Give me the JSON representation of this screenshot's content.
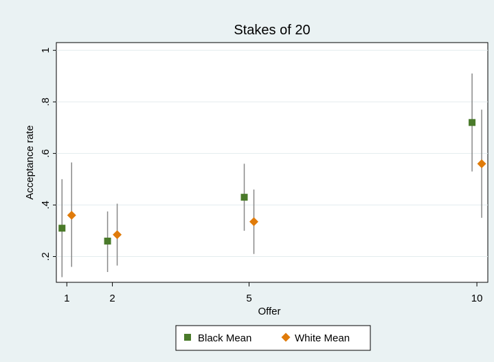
{
  "chart_data": {
    "type": "scatter",
    "title": "Stakes of 20",
    "xlabel": "Offer",
    "ylabel": "Acceptance rate",
    "x_ticks": [
      1,
      2,
      5,
      10
    ],
    "x_tick_labels": [
      "1",
      "2",
      "5",
      "10"
    ],
    "y_ticks": [
      0.2,
      0.4,
      0.6,
      0.8,
      1.0
    ],
    "y_tick_labels": [
      ".2",
      ".4",
      ".6",
      ".8",
      "1"
    ],
    "xlim": [
      0.77,
      10.24
    ],
    "ylim": [
      0.1,
      1.03
    ],
    "grid": true,
    "legend_position": "bottom",
    "series": [
      {
        "name": "Black Mean",
        "marker": "square",
        "color": "#4a7a2a",
        "points": [
          {
            "x": 1,
            "y": 0.31,
            "lo": 0.12,
            "hi": 0.5
          },
          {
            "x": 2,
            "y": 0.26,
            "lo": 0.14,
            "hi": 0.375
          },
          {
            "x": 5,
            "y": 0.43,
            "lo": 0.3,
            "hi": 0.56
          },
          {
            "x": 10,
            "y": 0.72,
            "lo": 0.53,
            "hi": 0.91
          }
        ]
      },
      {
        "name": "White Mean",
        "marker": "diamond",
        "color": "#e07b0a",
        "points": [
          {
            "x": 1,
            "y": 0.36,
            "lo": 0.16,
            "hi": 0.565
          },
          {
            "x": 2,
            "y": 0.285,
            "lo": 0.165,
            "hi": 0.405
          },
          {
            "x": 5,
            "y": 0.335,
            "lo": 0.21,
            "hi": 0.46
          },
          {
            "x": 10,
            "y": 0.56,
            "lo": 0.35,
            "hi": 0.77
          }
        ]
      }
    ]
  }
}
